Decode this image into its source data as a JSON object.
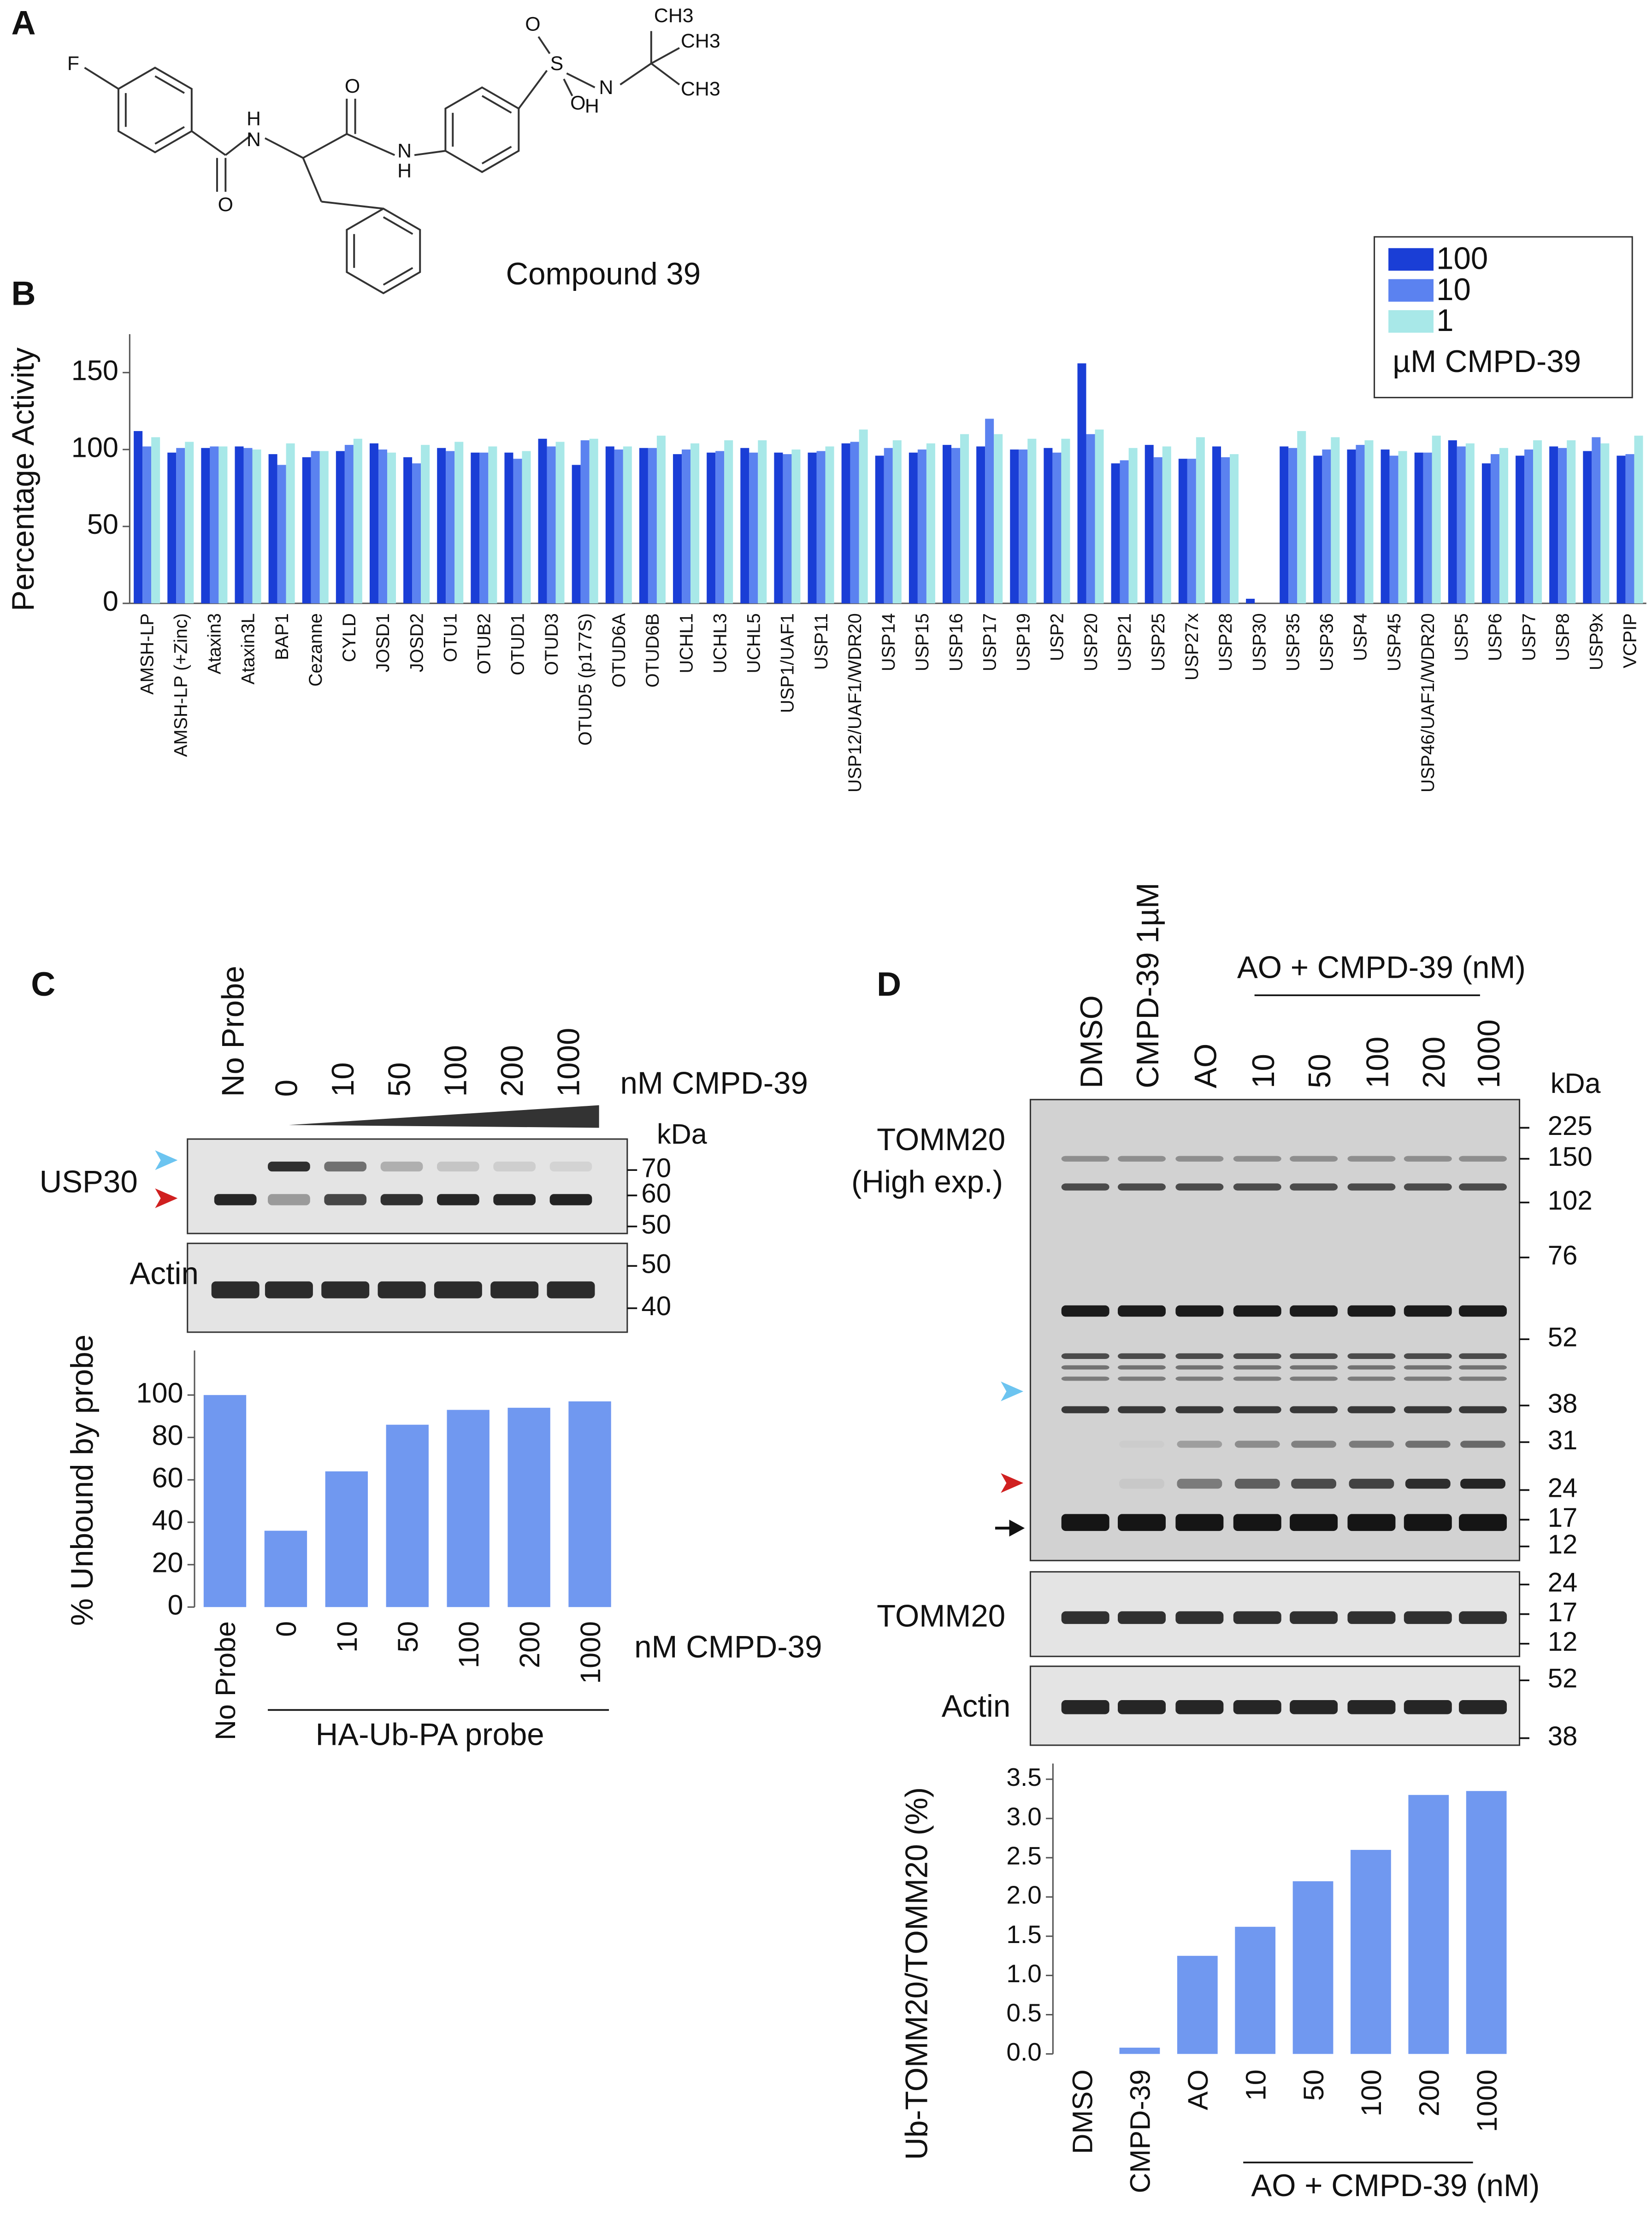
{
  "panel_labels": [
    "A",
    "B",
    "C",
    "D"
  ],
  "structure": {
    "atoms": [
      "F",
      "H",
      "N",
      "O",
      "O",
      "N",
      "H",
      "S",
      "O",
      "O",
      "H",
      "N",
      "CH3",
      "CH3",
      "CH3"
    ],
    "name": "Compound 39"
  },
  "chart_data": [
    {
      "type": "bar",
      "y_label": "Percentage Activity",
      "legend_title": "µM CMPD-39",
      "legend": "upper right",
      "categories": [
        "AMSH-LP",
        "AMSH-LP (+Zinc)",
        "Ataxin3",
        "Ataxin3L",
        "BAP1",
        "Cezanne",
        "CYLD",
        "JOSD1",
        "JOSD2",
        "OTU1",
        "OTUB2",
        "OTUD1",
        "OTUD3",
        "OTUD5 (p177S)",
        "OTUD6A",
        "OTUD6B",
        "UCHL1",
        "UCHL3",
        "UCHL5",
        "USP1/UAF1",
        "USP11",
        "USP12/UAF1/WDR20",
        "USP14",
        "USP15",
        "USP16",
        "USP17",
        "USP19",
        "USP2",
        "USP20",
        "USP21",
        "USP25",
        "USP27x",
        "USP28",
        "USP30",
        "USP35",
        "USP36",
        "USP4",
        "USP45",
        "USP46/UAF1/WDR20",
        "USP5",
        "USP6",
        "USP7",
        "USP8",
        "USP9x",
        "VCPIP"
      ],
      "series": [
        {
          "name": "100",
          "color": "#1a3ed6",
          "values": [
            112,
            98,
            101,
            102,
            97,
            95,
            99,
            104,
            95,
            101,
            98,
            98,
            107,
            90,
            102,
            101,
            97,
            98,
            101,
            98,
            98,
            104,
            96,
            98,
            103,
            102,
            100,
            101,
            156,
            91,
            103,
            94,
            102,
            3,
            102,
            96,
            100,
            100,
            98,
            106,
            91,
            96,
            102,
            99,
            96
          ]
        },
        {
          "name": "10",
          "color": "#5b82f0",
          "values": [
            102,
            101,
            102,
            101,
            90,
            99,
            103,
            100,
            91,
            99,
            98,
            94,
            102,
            106,
            100,
            101,
            100,
            99,
            98,
            97,
            99,
            105,
            101,
            100,
            101,
            120,
            100,
            98,
            110,
            93,
            95,
            94,
            95,
            0,
            101,
            100,
            103,
            96,
            98,
            102,
            97,
            100,
            101,
            108,
            97
          ]
        },
        {
          "name": "1",
          "color": "#a8e8e8",
          "values": [
            108,
            105,
            102,
            100,
            104,
            99,
            107,
            98,
            103,
            105,
            102,
            99,
            105,
            107,
            102,
            109,
            104,
            106,
            106,
            100,
            102,
            113,
            106,
            104,
            110,
            110,
            107,
            107,
            113,
            101,
            102,
            108,
            97,
            0,
            112,
            108,
            106,
            99,
            109,
            104,
            101,
            106,
            106,
            104,
            109
          ]
        }
      ],
      "ylim": [
        0,
        175
      ],
      "yticks": [
        0,
        50,
        100,
        150
      ]
    },
    {
      "type": "bar",
      "y_label": "% Unbound by probe",
      "x_label": "nM CMPD-39",
      "group_label": "HA-Ub-PA probe",
      "categories": [
        "No Probe",
        "0",
        "10",
        "50",
        "100",
        "200",
        "1000"
      ],
      "values": [
        100,
        36,
        64,
        86,
        93,
        94,
        97
      ],
      "color": "#7098f0",
      "ylim": [
        0,
        121
      ],
      "yticks": [
        0,
        20,
        40,
        60,
        80,
        100
      ]
    },
    {
      "type": "bar",
      "y_label": "Ub-TOMM20/TOMM20 (%)",
      "group_label": "AO + CMPD-39 (nM)",
      "categories": [
        "DMSO",
        "CMPD-39",
        "AO",
        "10",
        "50",
        "100",
        "200",
        "1000"
      ],
      "values": [
        0,
        0.08,
        1.25,
        1.62,
        2.2,
        2.6,
        3.3,
        3.35
      ],
      "color": "#7098f0",
      "ylim": [
        0,
        3.7
      ],
      "yticks": [
        {
          "value": 0,
          "label": "0.0"
        },
        0.5,
        {
          "value": 1,
          "label": "1.0"
        },
        1.5,
        {
          "value": 2,
          "label": "2.0"
        },
        2.5,
        {
          "value": 3,
          "label": "3.0"
        },
        3.5
      ]
    }
  ],
  "blot_c": {
    "lanes": [
      "No Probe",
      "0",
      "10",
      "50",
      "100",
      "200",
      "1000"
    ],
    "lane_unit": "nM CMPD-39",
    "kda": "kDa",
    "rows": [
      {
        "label": "USP30",
        "markers": [
          "70",
          "60",
          "50"
        ]
      },
      {
        "label": "Actin",
        "markers": [
          "50",
          "40"
        ]
      }
    ]
  },
  "blot_d": {
    "lanes": [
      "DMSO",
      "CMPD-39 1µM",
      "AO",
      "10",
      "50",
      "100",
      "200",
      "1000"
    ],
    "group_label": "AO + CMPD-39 (nM)",
    "kda": "kDa",
    "rows": [
      {
        "label": [
          "TOMM20",
          "(High exp.)"
        ],
        "markers": [
          "225",
          "150",
          "102",
          "76",
          "52",
          "38",
          "31",
          "24",
          "17",
          "12"
        ]
      },
      {
        "label": [
          "TOMM20"
        ],
        "markers": [
          "24",
          "17",
          "12"
        ]
      },
      {
        "label": [
          "Actin"
        ],
        "markers": [
          "52",
          "38"
        ]
      }
    ]
  }
}
